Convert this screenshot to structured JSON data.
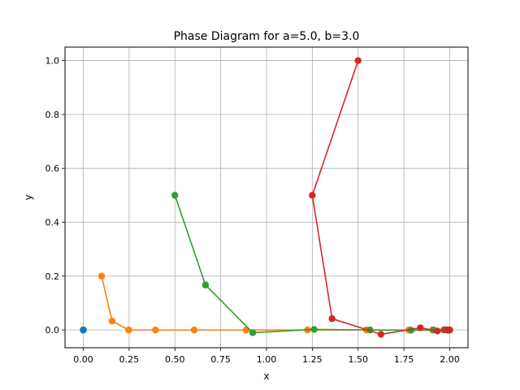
{
  "chart_data": {
    "type": "line",
    "title": "Phase Diagram for a=5.0, b=3.0",
    "xlabel": "x",
    "ylabel": "y",
    "xlim": [
      -0.1,
      2.1
    ],
    "ylim": [
      -0.066,
      1.05
    ],
    "grid": true,
    "x_ticks": [
      0.0,
      0.25,
      0.5,
      0.75,
      1.0,
      1.25,
      1.5,
      1.75,
      2.0
    ],
    "x_tick_labels": [
      "0.00",
      "0.25",
      "0.50",
      "0.75",
      "1.00",
      "1.25",
      "1.50",
      "1.75",
      "2.00"
    ],
    "y_ticks": [
      0.0,
      0.2,
      0.4,
      0.6,
      0.8,
      1.0
    ],
    "y_tick_labels": [
      "0.0",
      "0.2",
      "0.4",
      "0.6",
      "0.8",
      "1.0"
    ],
    "series": [
      {
        "color": "#1f77b4",
        "points": [
          [
            0.0,
            0.0
          ],
          [
            0.0,
            0.0
          ],
          [
            0.0,
            0.0
          ],
          [
            0.0,
            0.0
          ]
        ]
      },
      {
        "color": "#ff7f0e",
        "points": [
          [
            0.1,
            0.2
          ],
          [
            0.157,
            0.033
          ],
          [
            0.248,
            0.0
          ],
          [
            0.394,
            0.0
          ],
          [
            0.605,
            0.0
          ],
          [
            0.889,
            0.0
          ],
          [
            1.224,
            0.0
          ],
          [
            1.545,
            0.0
          ],
          [
            1.777,
            0.0
          ],
          [
            1.906,
            0.0
          ],
          [
            1.967,
            0.0
          ],
          [
            1.99,
            0.0
          ],
          [
            1.997,
            0.0
          ],
          [
            1.999,
            0.0
          ],
          [
            2.0,
            0.0
          ]
        ]
      },
      {
        "color": "#2ca02c",
        "points": [
          [
            0.5,
            0.5
          ],
          [
            0.667,
            0.167
          ],
          [
            0.925,
            -0.01
          ],
          [
            1.26,
            0.002
          ],
          [
            1.565,
            0.0
          ],
          [
            1.789,
            -0.001
          ],
          [
            1.912,
            0.0
          ],
          [
            1.969,
            0.0
          ],
          [
            1.99,
            0.0
          ],
          [
            1.997,
            0.0
          ],
          [
            2.0,
            0.0
          ]
        ]
      },
      {
        "color": "#d62728",
        "points": [
          [
            1.5,
            1.0
          ],
          [
            1.25,
            0.5
          ],
          [
            1.358,
            0.042
          ],
          [
            1.625,
            -0.016
          ],
          [
            1.84,
            0.008
          ],
          [
            1.933,
            -0.004
          ],
          [
            1.978,
            0.001
          ],
          [
            1.993,
            0.0
          ],
          [
            1.998,
            0.0
          ],
          [
            2.0,
            0.0
          ]
        ]
      }
    ]
  }
}
